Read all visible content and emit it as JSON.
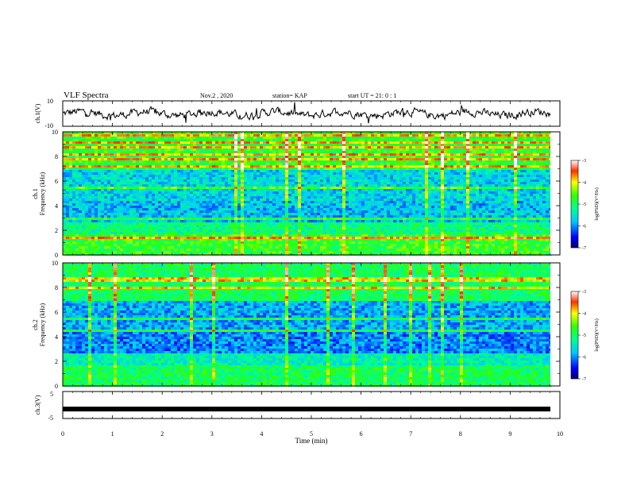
{
  "header": {
    "title": "VLF Spectra",
    "date": "Nov.2 , 2020",
    "station": "station= KAP",
    "start": "start UT = 21: 0 : 1"
  },
  "chart_data": [
    {
      "type": "line",
      "panel": "ch1-waveform",
      "ylabel": "ch.1(V)",
      "ylim": [
        -10,
        10
      ],
      "yticks": [
        "10",
        "-10"
      ],
      "xlim": [
        0,
        10
      ]
    },
    {
      "type": "heatmap",
      "panel": "ch1-spectrogram",
      "ylabel": "ch.1 Frequency (kHz)",
      "ylim": [
        0,
        10
      ],
      "yticks": [
        "0",
        "2",
        "4",
        "6",
        "8",
        "10"
      ],
      "xlim": [
        0,
        10
      ],
      "colorbar": {
        "label": "log(PSD)(V²/Hz)",
        "ticks": [
          "-3",
          "-4",
          "-5",
          "-6",
          "-7"
        ],
        "range": [
          -7,
          -3
        ]
      }
    },
    {
      "type": "heatmap",
      "panel": "ch2-spectrogram",
      "ylabel": "ch.2 Frequency (kHz)",
      "ylim": [
        0,
        10
      ],
      "yticks": [
        "0",
        "2",
        "4",
        "6",
        "8",
        "10"
      ],
      "xlim": [
        0,
        10
      ],
      "colorbar": {
        "label": "log(PSD)(V²/Hz)",
        "ticks": [
          "-3",
          "-4",
          "-5",
          "-6",
          "-7"
        ],
        "range": [
          -7,
          -3
        ]
      }
    },
    {
      "type": "line",
      "panel": "ch3-waveform",
      "ylabel": "ch.3(V)",
      "ylim": [
        -5,
        5
      ],
      "yticks": [
        "5",
        "-5"
      ],
      "xlim": [
        0,
        10
      ],
      "level": -1.5
    }
  ],
  "xaxis": {
    "label": "Time (min)",
    "ticks": [
      "0",
      "1",
      "2",
      "3",
      "4",
      "5",
      "6",
      "7",
      "8",
      "9",
      "10"
    ]
  }
}
